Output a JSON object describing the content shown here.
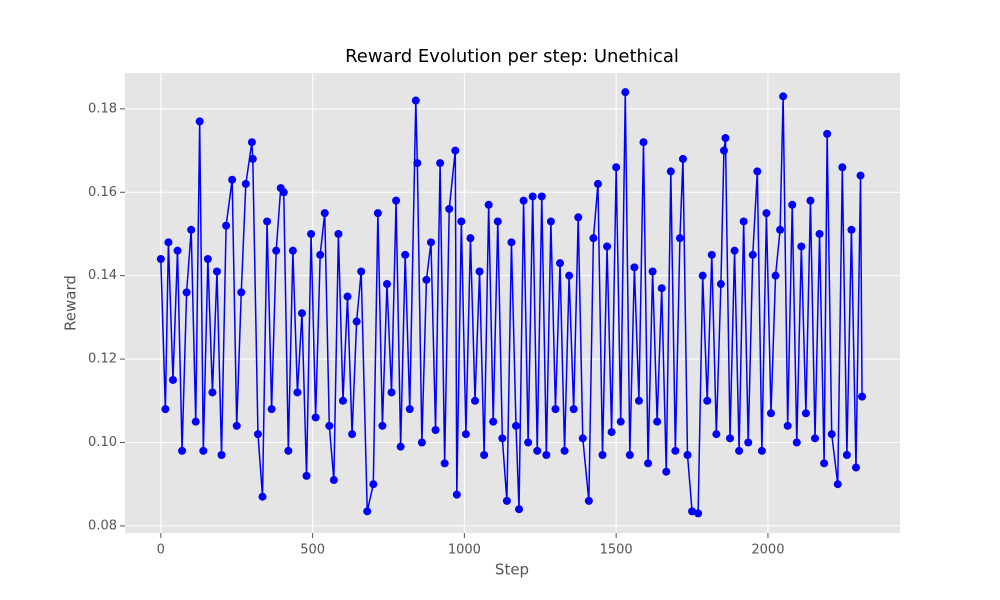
{
  "chart_data": {
    "type": "line",
    "title": "Reward Evolution per step: Unethical",
    "x_label": "Step",
    "y_label": "Reward",
    "color": "#0000ff",
    "grid": true,
    "xlim": [
      -118,
      2435
    ],
    "ylim": [
      0.0783,
      0.1886
    ],
    "xticks": [
      0,
      500,
      1000,
      1500,
      2000
    ],
    "yticks": [
      0.08,
      {
        "value": 0.1,
        "label": "0.10"
      },
      0.12,
      0.14,
      0.16,
      0.18
    ],
    "x": [
      0,
      15,
      25,
      40,
      55,
      70,
      85,
      100,
      115,
      128,
      140,
      155,
      170,
      185,
      200,
      215,
      235,
      250,
      265,
      280,
      300,
      303,
      320,
      335,
      350,
      365,
      380,
      395,
      405,
      420,
      435,
      450,
      465,
      480,
      495,
      510,
      525,
      540,
      555,
      570,
      585,
      600,
      615,
      630,
      645,
      660,
      680,
      700,
      715,
      730,
      745,
      760,
      775,
      790,
      805,
      820,
      840,
      845,
      860,
      875,
      890,
      905,
      920,
      935,
      950,
      970,
      975,
      990,
      1005,
      1020,
      1035,
      1050,
      1065,
      1080,
      1095,
      1110,
      1125,
      1140,
      1155,
      1170,
      1180,
      1195,
      1210,
      1225,
      1240,
      1255,
      1270,
      1285,
      1300,
      1315,
      1330,
      1345,
      1360,
      1375,
      1390,
      1410,
      1425,
      1440,
      1455,
      1470,
      1485,
      1500,
      1515,
      1530,
      1545,
      1560,
      1575,
      1590,
      1605,
      1620,
      1635,
      1650,
      1665,
      1680,
      1695,
      1710,
      1720,
      1735,
      1750,
      1770,
      1785,
      1800,
      1815,
      1830,
      1845,
      1855,
      1860,
      1875,
      1890,
      1905,
      1920,
      1935,
      1950,
      1965,
      1980,
      1995,
      2010,
      2025,
      2040,
      2050,
      2065,
      2080,
      2095,
      2110,
      2125,
      2140,
      2155,
      2170,
      2185,
      2195,
      2210,
      2230,
      2245,
      2260,
      2275,
      2290,
      2305,
      2310
    ],
    "values": [
      0.144,
      0.108,
      0.148,
      0.115,
      0.146,
      0.098,
      0.136,
      0.151,
      0.105,
      0.177,
      0.098,
      0.144,
      0.112,
      0.141,
      0.097,
      0.152,
      0.163,
      0.104,
      0.136,
      0.162,
      0.172,
      0.168,
      0.102,
      0.087,
      0.153,
      0.108,
      0.146,
      0.161,
      0.16,
      0.098,
      0.146,
      0.112,
      0.131,
      0.092,
      0.15,
      0.106,
      0.145,
      0.155,
      0.104,
      0.091,
      0.15,
      0.11,
      0.135,
      0.102,
      0.129,
      0.141,
      0.0835,
      0.09,
      0.155,
      0.104,
      0.138,
      0.112,
      0.158,
      0.099,
      0.145,
      0.108,
      0.182,
      0.167,
      0.1,
      0.139,
      0.148,
      0.103,
      0.167,
      0.095,
      0.156,
      0.17,
      0.0875,
      0.153,
      0.102,
      0.149,
      0.11,
      0.141,
      0.097,
      0.157,
      0.105,
      0.153,
      0.101,
      0.086,
      0.148,
      0.104,
      0.084,
      0.158,
      0.1,
      0.159,
      0.098,
      0.159,
      0.097,
      0.153,
      0.108,
      0.143,
      0.098,
      0.14,
      0.108,
      0.154,
      0.101,
      0.086,
      0.149,
      0.162,
      0.097,
      0.147,
      0.1025,
      0.166,
      0.105,
      0.184,
      0.097,
      0.142,
      0.11,
      0.172,
      0.095,
      0.141,
      0.105,
      0.137,
      0.093,
      0.165,
      0.098,
      0.149,
      0.168,
      0.097,
      0.0835,
      0.083,
      0.14,
      0.11,
      0.145,
      0.102,
      0.138,
      0.17,
      0.173,
      0.101,
      0.146,
      0.098,
      0.153,
      0.1,
      0.145,
      0.165,
      0.098,
      0.155,
      0.107,
      0.14,
      0.151,
      0.183,
      0.104,
      0.157,
      0.1,
      0.147,
      0.107,
      0.158,
      0.101,
      0.15,
      0.095,
      0.174,
      0.102,
      0.09,
      0.166,
      0.097,
      0.151,
      0.094,
      0.164,
      0.111
    ]
  }
}
